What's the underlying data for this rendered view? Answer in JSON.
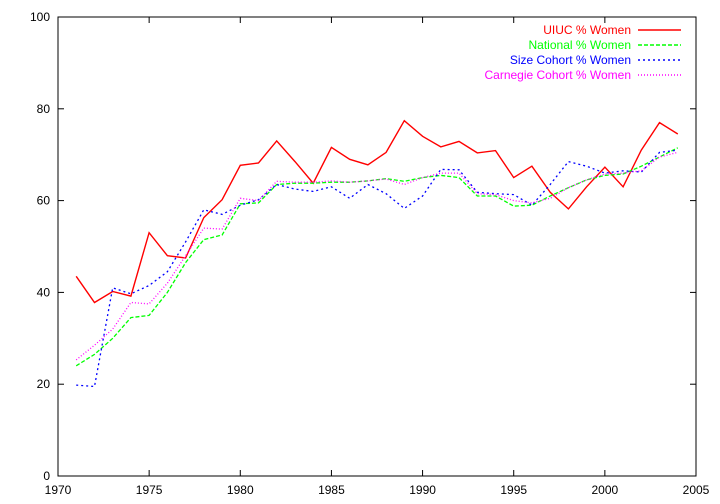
{
  "chart_data": {
    "type": "line",
    "title": "",
    "xlabel": "",
    "ylabel": "",
    "xlim": [
      1970,
      2005
    ],
    "ylim": [
      0,
      100
    ],
    "xticks": [
      1970,
      1975,
      1980,
      1985,
      1990,
      1995,
      2000,
      2005
    ],
    "yticks": [
      0,
      20,
      40,
      60,
      80,
      100
    ],
    "grid": false,
    "legend_position": "top-right",
    "x": [
      1971,
      1972,
      1973,
      1974,
      1975,
      1976,
      1977,
      1978,
      1979,
      1980,
      1981,
      1982,
      1983,
      1984,
      1985,
      1986,
      1987,
      1988,
      1989,
      1990,
      1991,
      1992,
      1993,
      1994,
      1995,
      1996,
      1997,
      1998,
      1999,
      2000,
      2001,
      2002,
      2003,
      2004
    ],
    "series": [
      {
        "name": "UIUC % Women",
        "color": "#ff0000",
        "dash": "solid",
        "values": [
          43.5,
          37.8,
          40.2,
          39.2,
          53.0,
          48.0,
          47.5,
          56.3,
          60.2,
          67.7,
          68.2,
          73.0,
          68.5,
          63.8,
          71.6,
          69.0,
          67.8,
          70.5,
          77.4,
          74.0,
          71.7,
          72.9,
          70.4,
          70.9,
          65.0,
          67.5,
          61.8,
          58.2,
          63.0,
          67.3,
          63.0,
          71.0,
          77.0,
          74.5
        ]
      },
      {
        "name": "National % Women",
        "color": "#00ff00",
        "dash": "dashed",
        "values": [
          24.0,
          26.5,
          30.0,
          34.5,
          35.0,
          40.0,
          46.5,
          51.5,
          52.5,
          59.3,
          59.5,
          63.5,
          63.8,
          63.8,
          64.0,
          64.0,
          64.3,
          64.8,
          64.2,
          65.0,
          65.5,
          65.0,
          61.0,
          61.0,
          58.8,
          59.0,
          61.0,
          62.8,
          64.5,
          65.5,
          65.8,
          67.5,
          69.5,
          71.5
        ]
      },
      {
        "name": "Size Cohort % Women",
        "color": "#0000ff",
        "dash": "dotted",
        "values": [
          19.8,
          19.5,
          41.0,
          39.7,
          41.5,
          44.5,
          51.0,
          58.0,
          57.0,
          59.0,
          60.2,
          63.5,
          62.5,
          62.0,
          63.0,
          60.5,
          63.5,
          61.5,
          58.3,
          61.0,
          66.8,
          66.7,
          61.8,
          61.5,
          61.3,
          59.0,
          63.5,
          68.5,
          67.5,
          66.0,
          66.5,
          66.2,
          70.5,
          71.0
        ]
      },
      {
        "name": "Carnegie Cohort % Women",
        "color": "#ff00ff",
        "dash": "dotted-fine",
        "values": [
          25.3,
          28.5,
          32.0,
          37.8,
          37.5,
          42.0,
          48.0,
          54.0,
          53.8,
          60.5,
          60.0,
          64.2,
          64.0,
          64.0,
          64.3,
          64.0,
          64.3,
          64.7,
          63.5,
          65.0,
          66.0,
          66.0,
          61.5,
          61.3,
          60.0,
          59.5,
          60.5,
          62.8,
          64.5,
          65.8,
          66.0,
          66.5,
          69.5,
          70.5
        ]
      }
    ]
  }
}
